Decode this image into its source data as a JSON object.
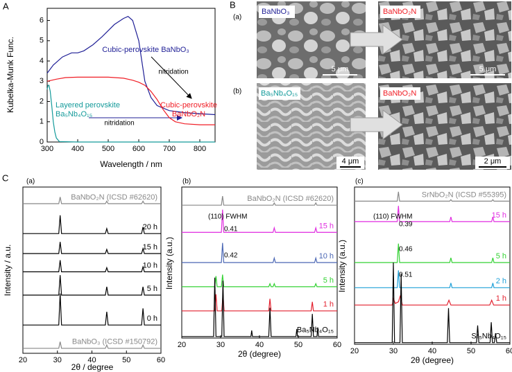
{
  "section_labels": [
    "B",
    "C"
  ],
  "sem_panel": {
    "row_labels": [
      "(a)",
      "(b)"
    ],
    "images": [
      {
        "label": "BaNbO₃",
        "scale": "5 μm"
      },
      {
        "label": "BaNbO₂N",
        "scale": "5 μm"
      },
      {
        "label": "Ba₅Nb₄O₁₅",
        "scale": "4 μm"
      },
      {
        "label": "BaNbO₂N",
        "scale": "2 μm"
      }
    ]
  },
  "chart_data": [
    {
      "type": "line",
      "panel_label": "A",
      "x_label": "Wavelength / nm",
      "y_label": "Kubelka-Munk Func.",
      "xlim": [
        300,
        850
      ],
      "xticks": [
        300,
        400,
        500,
        600,
        700,
        800
      ],
      "ylim": [
        0,
        6.6
      ],
      "yticks": [
        0,
        1,
        2,
        3,
        4,
        5,
        6
      ],
      "annotations": [
        "nitridation",
        "nitridation"
      ],
      "series": [
        {
          "name": "Cubic-perovskite BaNbO₃",
          "color": "#1f1f96",
          "x": [
            300,
            320,
            350,
            380,
            400,
            420,
            450,
            480,
            500,
            520,
            550,
            565,
            580,
            600,
            610,
            620,
            640,
            660,
            700,
            750,
            800,
            850
          ],
          "values": [
            3.4,
            3.8,
            4.2,
            4.4,
            4.4,
            4.5,
            4.8,
            5.2,
            5.5,
            5.8,
            6.1,
            6.2,
            6.0,
            5.0,
            4.0,
            3.0,
            2.2,
            1.8,
            1.55,
            1.45,
            1.4,
            1.35
          ]
        },
        {
          "name": "Cubic-perovskite\nBaNbO₂N",
          "color": "#f01c24",
          "x": [
            300,
            330,
            360,
            400,
            450,
            500,
            550,
            580,
            600,
            620,
            640,
            660,
            680,
            700,
            720,
            750,
            800,
            850
          ],
          "values": [
            3.0,
            3.1,
            3.18,
            3.2,
            3.2,
            3.2,
            3.15,
            3.05,
            2.95,
            2.8,
            2.5,
            2.1,
            1.6,
            1.2,
            1.0,
            0.9,
            0.85,
            0.85
          ]
        },
        {
          "name": "Layered perovskite\nBa₅Nb₄O₁₅",
          "color": "#139a9a",
          "x": [
            300,
            303,
            306,
            310,
            315,
            320,
            325,
            330,
            340,
            400,
            850
          ],
          "values": [
            2.6,
            2.8,
            2.8,
            2.5,
            1.8,
            1.0,
            0.5,
            0.2,
            0.02,
            0,
            0
          ]
        }
      ]
    },
    {
      "type": "line",
      "panel_label": "(a)",
      "x_label": "2θ / degree",
      "y_label": "Intensity / a.u.",
      "xlim": [
        20,
        60
      ],
      "xticks": [
        20,
        30,
        40,
        50,
        60
      ],
      "ylim": [
        0,
        100
      ],
      "series": [
        {
          "name": "BaNbO₂N (ICSD #62620)",
          "color": "#888888",
          "x": [
            20,
            30.4,
            30.8,
            31.2,
            43.9,
            44.3,
            44.7,
            54.4,
            54.8,
            55.2,
            60
          ],
          "values": [
            90,
            90,
            94,
            90,
            90,
            91.5,
            90,
            90,
            91.5,
            90,
            90
          ]
        },
        {
          "name": "20 h",
          "color": "#000000",
          "x": [
            20,
            30.4,
            30.8,
            31.2,
            43.9,
            44.3,
            44.7,
            54.4,
            54.8,
            55.2,
            60
          ],
          "values": [
            72,
            72,
            83,
            72,
            72,
            75,
            72,
            72,
            76,
            72,
            72
          ]
        },
        {
          "name": "15 h",
          "color": "#000000",
          "x": [
            20,
            30.4,
            30.8,
            31.2,
            43.9,
            44.3,
            44.7,
            54.4,
            54.8,
            55.2,
            60
          ],
          "values": [
            60,
            60,
            67,
            60,
            60,
            62.5,
            60,
            60,
            63,
            60,
            60
          ]
        },
        {
          "name": "10 h",
          "color": "#000000",
          "x": [
            20,
            30.4,
            30.8,
            31.2,
            43.9,
            44.3,
            44.7,
            54.4,
            54.8,
            55.2,
            60
          ],
          "values": [
            49,
            49,
            56,
            49,
            49,
            51.5,
            49,
            49,
            52,
            49,
            49
          ]
        },
        {
          "name": "5 h",
          "color": "#000000",
          "x": [
            20,
            30.4,
            30.8,
            31.2,
            43.9,
            44.3,
            44.7,
            54.4,
            54.8,
            55.2,
            60
          ],
          "values": [
            35,
            35,
            47,
            35,
            35,
            40,
            35,
            35,
            40,
            35,
            35
          ]
        },
        {
          "name": "0 h",
          "color": "#000000",
          "x": [
            20,
            30.4,
            30.8,
            31.2,
            43.9,
            44.3,
            44.7,
            54.4,
            54.8,
            55.2,
            60
          ],
          "values": [
            17,
            17,
            36,
            17,
            17,
            25,
            17,
            17,
            27,
            17,
            17
          ]
        },
        {
          "name": "BaNbO₃ (ICSD #150792)",
          "color": "#888888",
          "x": [
            20,
            30.4,
            30.8,
            31.2,
            43.9,
            44.3,
            44.7,
            54.4,
            54.8,
            55.2,
            60
          ],
          "values": [
            3,
            3,
            7,
            3,
            3,
            5,
            3,
            3,
            5,
            3,
            3
          ]
        }
      ]
    },
    {
      "type": "line",
      "panel_label": "(b)",
      "x_label": "2θ (degree)",
      "y_label": "Intensity (a.u.)",
      "xlim": [
        20,
        60
      ],
      "xticks": [
        20,
        30,
        40,
        50,
        60
      ],
      "ylim": [
        0,
        100
      ],
      "annotations": [
        "(110) FWHM",
        "0.41",
        "0.42"
      ],
      "series": [
        {
          "name": "BaNbO₂N (ICSD #62620)",
          "color": "#888888",
          "x": [
            20,
            30.2,
            30.5,
            30.8,
            43.5,
            43.8,
            44.1,
            54.2,
            54.5,
            54.8,
            60
          ],
          "values": [
            88,
            88,
            94,
            88,
            88,
            89.5,
            88,
            88,
            89.5,
            88,
            88
          ]
        },
        {
          "name": "15 h",
          "color": "#e02ce0",
          "x": [
            20,
            30.2,
            30.5,
            30.8,
            43.5,
            43.8,
            44.1,
            54.2,
            54.5,
            54.8,
            60
          ],
          "values": [
            70,
            70,
            85,
            70,
            70,
            73,
            70,
            70,
            73,
            70,
            70
          ]
        },
        {
          "name": "10 h",
          "color": "#4a66b4",
          "x": [
            20,
            30.2,
            30.5,
            30.8,
            43.5,
            43.8,
            44.1,
            54.2,
            54.5,
            54.8,
            60
          ],
          "values": [
            50,
            50,
            63,
            50,
            50,
            53,
            50,
            50,
            53,
            50,
            50
          ]
        },
        {
          "name": "5 h",
          "color": "#33d233",
          "x": [
            20,
            28.5,
            28.8,
            29.1,
            30.2,
            30.5,
            30.8,
            42.4,
            42.7,
            43.0,
            43.5,
            43.8,
            44.1,
            54.2,
            54.5,
            54.8,
            60
          ],
          "values": [
            34,
            34,
            41,
            34,
            34,
            42,
            34,
            34,
            36,
            34,
            34,
            36,
            34,
            34,
            36,
            34,
            34
          ]
        },
        {
          "name": "1 h",
          "color": "#e3202e",
          "x": [
            20,
            28.5,
            28.8,
            29.1,
            30.3,
            30.6,
            30.9,
            42.4,
            42.7,
            43.0,
            53.3,
            53.6,
            53.9,
            60
          ],
          "values": [
            18,
            18,
            29,
            18,
            18,
            29,
            18,
            18,
            26,
            18,
            18,
            24,
            18,
            18
          ]
        },
        {
          "name": "Ba₅Nb₄O₁₅",
          "color": "#000000",
          "x": [
            20,
            28.2,
            28.5,
            28.8,
            30.3,
            30.6,
            30.9,
            37.8,
            38.0,
            38.2,
            42.4,
            42.7,
            43.0,
            49.4,
            49.6,
            49.8,
            53.3,
            53.6,
            53.9,
            54.8,
            55.0,
            55.2,
            60
          ],
          "values": [
            1,
            1,
            40,
            1,
            1,
            38,
            1,
            1,
            5,
            1,
            1,
            20,
            1,
            1,
            6,
            1,
            1,
            16,
            1,
            1,
            7,
            1,
            1
          ]
        }
      ]
    },
    {
      "type": "line",
      "panel_label": "(c)",
      "x_label": "2θ (degree)",
      "y_label": "Intensity (a.u.)",
      "xlim": [
        20,
        60
      ],
      "xticks": [
        20,
        30,
        40,
        50,
        60
      ],
      "ylim": [
        0,
        100
      ],
      "annotations": [
        "(110) FWHM",
        "0.39",
        "0.46",
        "0.51"
      ],
      "series": [
        {
          "name": "SrNbO₂N (ICSD #55395)",
          "color": "#888888",
          "x": [
            20,
            31.0,
            31.3,
            31.6,
            44.5,
            44.8,
            45.1,
            55.3,
            55.6,
            55.9,
            60
          ],
          "values": [
            91,
            91,
            97,
            91,
            91,
            92,
            91,
            91,
            92,
            91,
            91
          ]
        },
        {
          "name": "15 h",
          "color": "#e02ce0",
          "x": [
            20,
            31.0,
            31.3,
            31.6,
            44.5,
            44.8,
            45.1,
            55.3,
            55.6,
            55.9,
            60
          ],
          "values": [
            78,
            78,
            88,
            78,
            78,
            81,
            78,
            78,
            81,
            78,
            78
          ]
        },
        {
          "name": "5 h",
          "color": "#33d233",
          "x": [
            20,
            31.0,
            31.3,
            31.6,
            44.5,
            44.8,
            45.1,
            55.3,
            55.6,
            55.9,
            60
          ],
          "values": [
            52,
            52,
            64,
            52,
            52,
            55,
            52,
            52,
            55,
            52,
            52
          ]
        },
        {
          "name": "2 h",
          "color": "#1fa0d8",
          "x": [
            20,
            31.0,
            31.3,
            31.6,
            44.5,
            44.8,
            45.1,
            55.3,
            55.6,
            55.9,
            60
          ],
          "values": [
            36,
            36,
            47,
            36,
            36,
            39,
            36,
            36,
            39,
            36,
            36
          ]
        },
        {
          "name": "1 h",
          "color": "#e3202e",
          "x": [
            20,
            29.7,
            30.0,
            30.5,
            31.3,
            31.8,
            32.3,
            43.8,
            44.3,
            44.8,
            54.8,
            55.3,
            55.8,
            60
          ],
          "values": [
            25,
            25,
            29,
            26,
            27,
            31,
            25,
            25,
            28,
            25,
            25,
            28,
            25,
            25
          ]
        },
        {
          "name": "Sr₅Nb₄O₁₅",
          "color": "#000000",
          "x": [
            20,
            29.7,
            30.0,
            30.3,
            31.7,
            32.0,
            32.3,
            43.9,
            44.2,
            44.5,
            51.4,
            51.7,
            52.0,
            54.9,
            55.2,
            55.5,
            56.0,
            56.3,
            56.6,
            60
          ],
          "values": [
            1,
            1,
            52,
            1,
            1,
            45,
            1,
            1,
            23,
            1,
            1,
            12,
            1,
            1,
            14,
            1,
            1,
            7,
            1,
            1
          ]
        }
      ]
    }
  ]
}
